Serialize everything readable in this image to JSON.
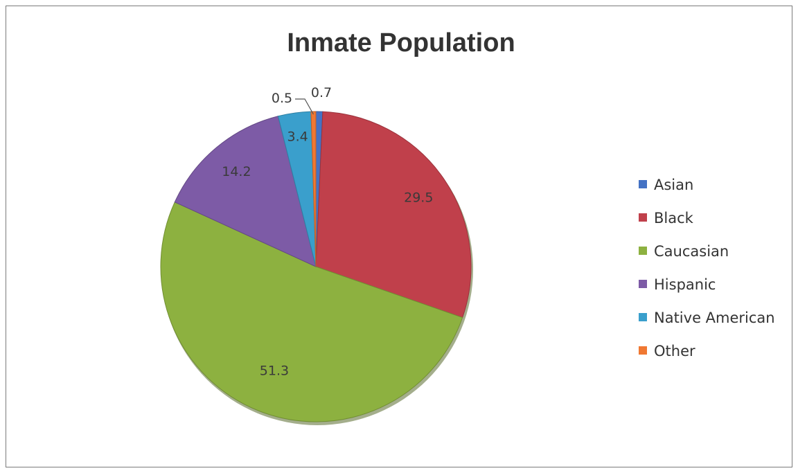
{
  "chart_data": {
    "type": "pie",
    "title": "Inmate Population",
    "categories": [
      "Asian",
      "Black",
      "Caucasian",
      "Hispanic",
      "Native American",
      "Other"
    ],
    "values": [
      0.7,
      29.5,
      51.3,
      14.2,
      3.4,
      0.5
    ],
    "data_labels": [
      "0.7",
      "29.5",
      "51.3",
      "14.2",
      "3.4",
      "0.5"
    ],
    "colors": [
      "#4472C4",
      "#C0404B",
      "#8DB140",
      "#7D5BA6",
      "#3A9FCC",
      "#F07832"
    ],
    "legend_position": "right",
    "start_angle_degrees": 0,
    "direction": "clockwise"
  }
}
